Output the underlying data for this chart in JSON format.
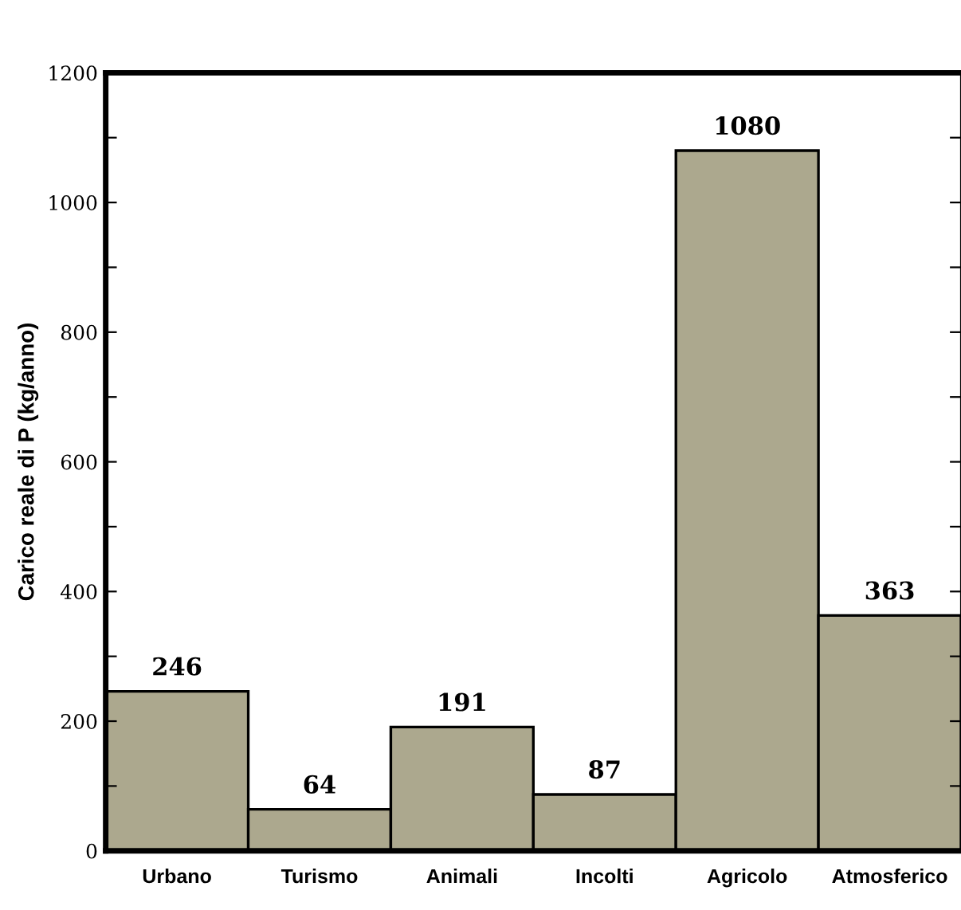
{
  "chart_data": {
    "type": "bar",
    "ylabel": "Carico reale di P (kg/anno)",
    "categories": [
      "Urbano",
      "Turismo",
      "Animali",
      "Incolti",
      "Agricolo",
      "Atmosferico"
    ],
    "values": [
      246,
      64,
      191,
      87,
      1080,
      363
    ],
    "color": "#aca88e",
    "ylim": [
      0,
      1200
    ],
    "yticks": [
      0,
      {
        "value": 100,
        "label": null
      },
      200,
      {
        "value": 300,
        "label": null
      },
      400,
      {
        "value": 500,
        "label": null
      },
      600,
      {
        "value": 700,
        "label": null
      },
      800,
      {
        "value": 900,
        "label": null
      },
      1000,
      {
        "value": 1100,
        "label": null
      },
      1200
    ],
    "data_labels": true,
    "grid": false,
    "legend": false
  }
}
